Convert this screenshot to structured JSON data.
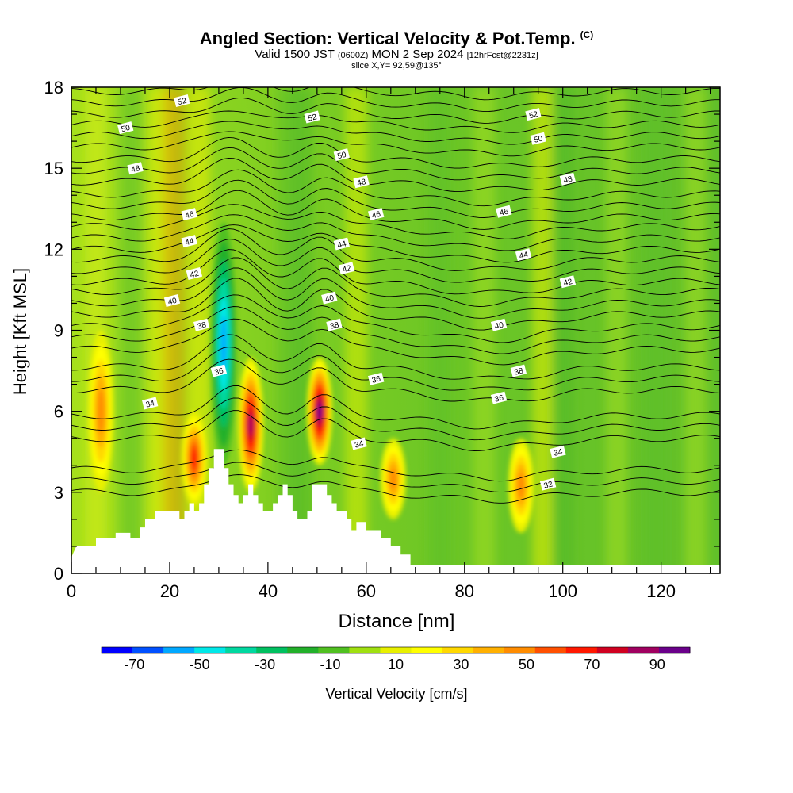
{
  "header": {
    "title": "Angled Section: Vertical Velocity & Pot.Temp.",
    "title_tag": "(C)",
    "valid_prefix": "Valid 1500 JST",
    "valid_zulu": "(0600Z)",
    "valid_date": "MON 2 Sep 2024",
    "forecast": "[12hrFcst@2231z]",
    "slice": "slice X,Y= 92,59@135°"
  },
  "chart_data": {
    "type": "heatmap",
    "xlabel": "Distance [nm]",
    "ylabel": "Height [Kft MSL]",
    "xlim": [
      0,
      132
    ],
    "ylim": [
      0,
      18
    ],
    "x_ticks": [
      0,
      20,
      40,
      60,
      80,
      100,
      120
    ],
    "y_ticks": [
      0,
      3,
      6,
      9,
      12,
      15,
      18
    ],
    "colorbar": {
      "label": "Vertical Velocity [cm/s]",
      "bounds": [
        -80,
        100
      ],
      "tick_values": [
        -70,
        -50,
        -30,
        -10,
        10,
        30,
        50,
        70,
        90
      ],
      "colors": [
        "#0000ff",
        "#0050ff",
        "#00a8ff",
        "#00e8e8",
        "#00d8a0",
        "#00c060",
        "#22b02a",
        "#50c020",
        "#a0e010",
        "#e8f000",
        "#ffff00",
        "#ffd800",
        "#ffb000",
        "#ff8c00",
        "#ff5000",
        "#ff1800",
        "#d00020",
        "#a00060",
        "#6a008a"
      ]
    },
    "updrafts": [
      {
        "x": 6,
        "z_range": [
          3,
          9
        ],
        "peak_cm_s": 50
      },
      {
        "x": 25,
        "z_range": [
          2.5,
          6
        ],
        "peak_cm_s": 70
      },
      {
        "x": 36.5,
        "z_range": [
          3,
          8
        ],
        "peak_cm_s": 90
      },
      {
        "x": 50.5,
        "z_range": [
          4,
          8
        ],
        "peak_cm_s": 100
      },
      {
        "x": 65.5,
        "z_range": [
          2,
          5
        ],
        "peak_cm_s": 50
      },
      {
        "x": 91.5,
        "z_range": [
          1.5,
          5
        ],
        "peak_cm_s": 50
      }
    ],
    "downdrafts": [
      {
        "x": 31,
        "z_range": [
          4,
          13
        ],
        "peak_cm_s": -60
      }
    ],
    "isentropes": {
      "levels": [
        32,
        34,
        36,
        38,
        40,
        42,
        44,
        46,
        48,
        50,
        52
      ],
      "labels": [
        {
          "text": "52",
          "x": 22.5,
          "z": 17.5
        },
        {
          "text": "52",
          "x": 49,
          "z": 16.9
        },
        {
          "text": "52",
          "x": 94,
          "z": 17.0
        },
        {
          "text": "50",
          "x": 11,
          "z": 16.5
        },
        {
          "text": "50",
          "x": 55,
          "z": 15.5
        },
        {
          "text": "50",
          "x": 95,
          "z": 16.1
        },
        {
          "text": "48",
          "x": 13,
          "z": 15.0
        },
        {
          "text": "48",
          "x": 59,
          "z": 14.5
        },
        {
          "text": "48",
          "x": 101,
          "z": 14.6
        },
        {
          "text": "46",
          "x": 24,
          "z": 13.3
        },
        {
          "text": "46",
          "x": 62,
          "z": 13.3
        },
        {
          "text": "46",
          "x": 88,
          "z": 13.4
        },
        {
          "text": "44",
          "x": 24,
          "z": 12.3
        },
        {
          "text": "44",
          "x": 55,
          "z": 12.2
        },
        {
          "text": "44",
          "x": 92,
          "z": 11.8
        },
        {
          "text": "42",
          "x": 25,
          "z": 11.1
        },
        {
          "text": "42",
          "x": 56,
          "z": 11.3
        },
        {
          "text": "42",
          "x": 101,
          "z": 10.8
        },
        {
          "text": "40",
          "x": 20.5,
          "z": 10.1
        },
        {
          "text": "40",
          "x": 52.5,
          "z": 10.2
        },
        {
          "text": "40",
          "x": 87,
          "z": 9.2
        },
        {
          "text": "38",
          "x": 26.5,
          "z": 9.2
        },
        {
          "text": "38",
          "x": 53.5,
          "z": 9.2
        },
        {
          "text": "38",
          "x": 91,
          "z": 7.5
        },
        {
          "text": "36",
          "x": 30,
          "z": 7.5
        },
        {
          "text": "36",
          "x": 62,
          "z": 7.2
        },
        {
          "text": "36",
          "x": 87,
          "z": 6.5
        },
        {
          "text": "34",
          "x": 16,
          "z": 6.3
        },
        {
          "text": "34",
          "x": 58.5,
          "z": 4.8
        },
        {
          "text": "34",
          "x": 99,
          "z": 4.5
        },
        {
          "text": "32",
          "x": 97,
          "z": 3.3
        }
      ]
    },
    "terrain_kft": [
      [
        0,
        0.6
      ],
      [
        1,
        1.0
      ],
      [
        5,
        1.0
      ],
      [
        5,
        1.3
      ],
      [
        9,
        1.3
      ],
      [
        9,
        1.5
      ],
      [
        12,
        1.5
      ],
      [
        12,
        1.3
      ],
      [
        14,
        1.3
      ],
      [
        14,
        1.7
      ],
      [
        15,
        1.7
      ],
      [
        15,
        2.0
      ],
      [
        17,
        2.0
      ],
      [
        17,
        2.3
      ],
      [
        22,
        2.3
      ],
      [
        22,
        2.0
      ],
      [
        23,
        2.0
      ],
      [
        23,
        2.3
      ],
      [
        24,
        2.3
      ],
      [
        24,
        2.6
      ],
      [
        25,
        2.6
      ],
      [
        25,
        2.3
      ],
      [
        26,
        2.3
      ],
      [
        26,
        2.6
      ],
      [
        27,
        2.6
      ],
      [
        27,
        3.3
      ],
      [
        28,
        3.3
      ],
      [
        28,
        3.9
      ],
      [
        29,
        3.9
      ],
      [
        29,
        4.6
      ],
      [
        31,
        4.6
      ],
      [
        31,
        3.9
      ],
      [
        32,
        3.9
      ],
      [
        32,
        3.3
      ],
      [
        33,
        3.3
      ],
      [
        33,
        2.9
      ],
      [
        34,
        2.9
      ],
      [
        34,
        2.6
      ],
      [
        35,
        2.6
      ],
      [
        35,
        2.9
      ],
      [
        36,
        2.9
      ],
      [
        36,
        3.3
      ],
      [
        37,
        3.3
      ],
      [
        37,
        2.9
      ],
      [
        38,
        2.9
      ],
      [
        38,
        2.6
      ],
      [
        39,
        2.6
      ],
      [
        39,
        2.3
      ],
      [
        41,
        2.3
      ],
      [
        41,
        2.6
      ],
      [
        42,
        2.6
      ],
      [
        42,
        2.9
      ],
      [
        43,
        2.9
      ],
      [
        43,
        3.3
      ],
      [
        44,
        3.3
      ],
      [
        44,
        2.9
      ],
      [
        45,
        2.9
      ],
      [
        45,
        2.3
      ],
      [
        46,
        2.3
      ],
      [
        46,
        2.0
      ],
      [
        48,
        2.0
      ],
      [
        48,
        2.3
      ],
      [
        49,
        2.3
      ],
      [
        49,
        3.3
      ],
      [
        52,
        3.3
      ],
      [
        52,
        2.9
      ],
      [
        53,
        2.9
      ],
      [
        53,
        2.6
      ],
      [
        54,
        2.6
      ],
      [
        54,
        2.3
      ],
      [
        56,
        2.3
      ],
      [
        56,
        2.0
      ],
      [
        57,
        2.0
      ],
      [
        57,
        1.6
      ],
      [
        58,
        1.6
      ],
      [
        58,
        1.9
      ],
      [
        60,
        1.9
      ],
      [
        60,
        1.6
      ],
      [
        63,
        1.6
      ],
      [
        63,
        1.3
      ],
      [
        65,
        1.3
      ],
      [
        65,
        1.0
      ],
      [
        67,
        1.0
      ],
      [
        67,
        0.7
      ],
      [
        69,
        0.7
      ],
      [
        69,
        0.3
      ],
      [
        132,
        0.3
      ]
    ]
  }
}
